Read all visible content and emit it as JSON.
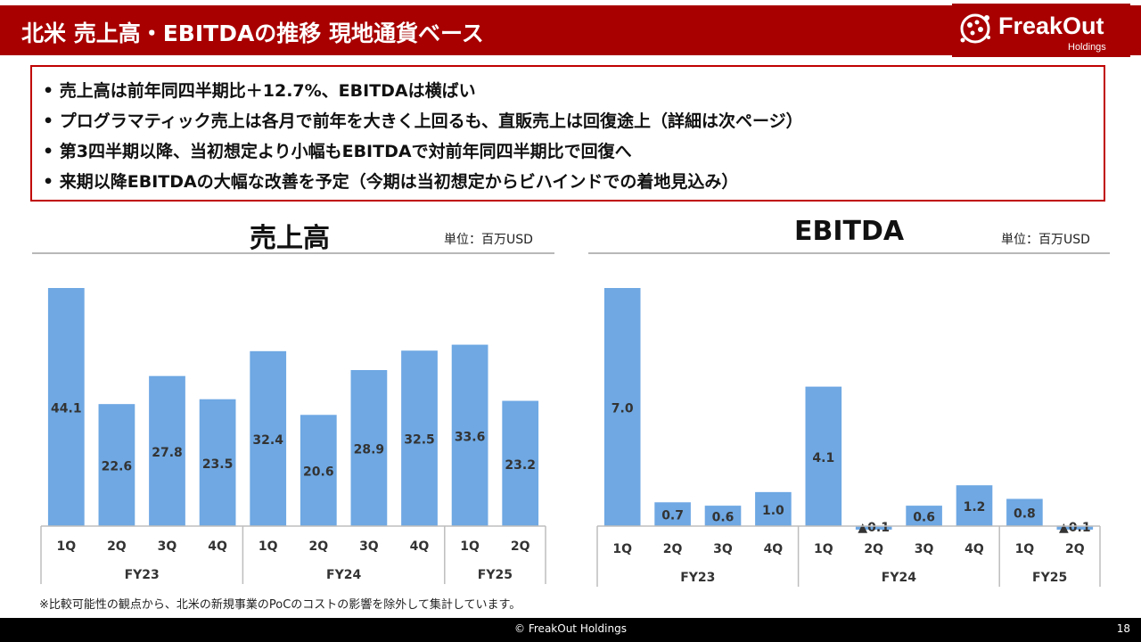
{
  "header": {
    "title": "北米 売上高・EBITDAの推移 現地通貨ベース",
    "logo_text": "FreakOut",
    "logo_sub": "Holdings"
  },
  "summary": {
    "bullets": [
      "• 売上高は前年同四半期比＋12.7%、EBITDAは横ばい",
      "• プログラマティック売上は各月で前年を大きく上回るも、直販売上は回復途上（詳細は次ページ）",
      "• 第3四半期以降、当初想定より小幅もEBITDAで対前年同四半期比で回復へ",
      "• 来期以降EBITDAの大幅な改善を予定（今期は当初想定からビハインドでの着地見込み）"
    ]
  },
  "chart_data": [
    {
      "type": "bar",
      "title": "売上高",
      "unit_label": "単位：百万USD",
      "categories": [
        "1Q",
        "2Q",
        "3Q",
        "4Q",
        "1Q",
        "2Q",
        "3Q",
        "4Q",
        "1Q",
        "2Q"
      ],
      "groups": [
        {
          "label": "FY23",
          "count": 4
        },
        {
          "label": "FY24",
          "count": 4
        },
        {
          "label": "FY25",
          "count": 2
        }
      ],
      "values": [
        44.1,
        22.6,
        27.8,
        23.5,
        32.4,
        20.6,
        28.9,
        32.5,
        33.6,
        23.2
      ],
      "value_labels": [
        "44.1",
        "22.6",
        "27.8",
        "23.5",
        "32.4",
        "20.6",
        "28.9",
        "32.5",
        "33.6",
        "23.2"
      ],
      "ylim": [
        0,
        44.1
      ],
      "color": "#6fa8e3"
    },
    {
      "type": "bar",
      "title": "EBITDA",
      "unit_label": "単位：百万USD",
      "categories": [
        "1Q",
        "2Q",
        "3Q",
        "4Q",
        "1Q",
        "2Q",
        "3Q",
        "4Q",
        "1Q",
        "2Q"
      ],
      "groups": [
        {
          "label": "FY23",
          "count": 4
        },
        {
          "label": "FY24",
          "count": 4
        },
        {
          "label": "FY25",
          "count": 2
        }
      ],
      "values": [
        7.0,
        0.7,
        0.6,
        1.0,
        4.1,
        -0.1,
        0.6,
        1.2,
        0.8,
        -0.1
      ],
      "value_labels": [
        "7.0",
        "0.7",
        "0.6",
        "1.0",
        "4.1",
        "▲0.1",
        "0.6",
        "1.2",
        "0.8",
        "▲0.1"
      ],
      "ylim": [
        0,
        7.0
      ],
      "color": "#6fa8e3"
    }
  ],
  "footnote": "※比較可能性の観点から、北米の新規事業のPoCのコストの影響を除外して集計しています。",
  "footer": {
    "copyright": "© FreakOut Holdings",
    "page_number": "18"
  }
}
